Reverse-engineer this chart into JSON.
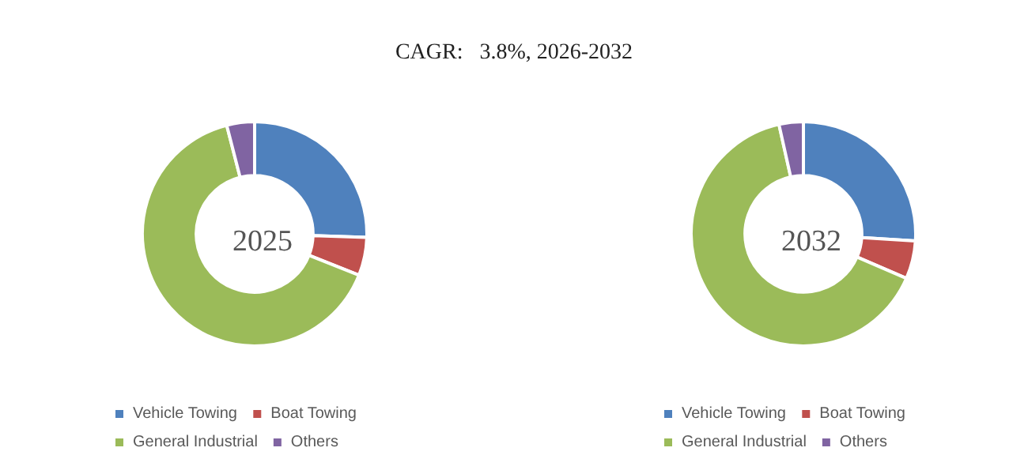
{
  "chart_data": [
    {
      "type": "donut",
      "title": "2025",
      "annotations": [
        "CAGR:   3.8%, 2026-2032"
      ],
      "categories": [
        "Vehicle Towing",
        "Boat Towing",
        "General Industrial",
        "Others"
      ],
      "values": [
        25.5,
        5.5,
        65,
        4
      ],
      "colors": [
        "#4f81bd",
        "#c0504d",
        "#9bbb59",
        "#8064a2"
      ],
      "legend": "bottom"
    },
    {
      "type": "donut",
      "title": "2032",
      "categories": [
        "Vehicle Towing",
        "Boat Towing",
        "General Industrial",
        "Others"
      ],
      "values": [
        26,
        5.5,
        65,
        3.5
      ],
      "colors": [
        "#4f81bd",
        "#c0504d",
        "#9bbb59",
        "#8064a2"
      ],
      "legend": "bottom"
    }
  ]
}
